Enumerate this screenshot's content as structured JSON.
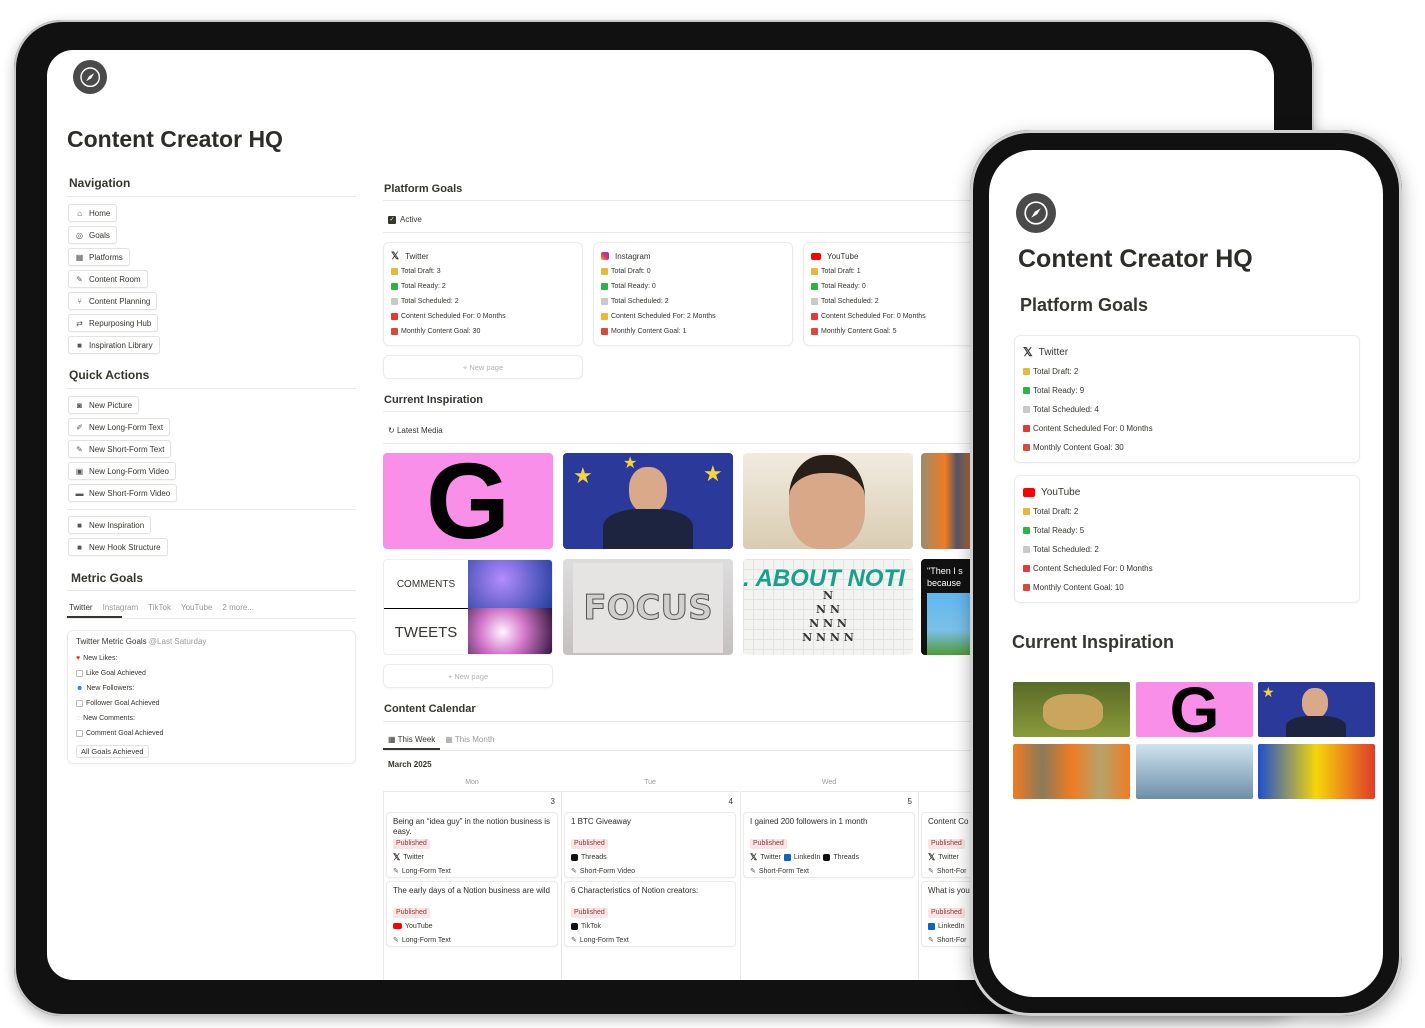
{
  "app": {
    "title": "Content Creator HQ",
    "logo": "compass-icon"
  },
  "navigation": {
    "heading": "Navigation",
    "items": [
      {
        "label": "Home",
        "icon": "home-icon"
      },
      {
        "label": "Goals",
        "icon": "target-icon"
      },
      {
        "label": "Platforms",
        "icon": "grid-icon"
      },
      {
        "label": "Content Room",
        "icon": "pencil-icon"
      },
      {
        "label": "Content Planning",
        "icon": "branch-icon"
      },
      {
        "label": "Repurposing Hub",
        "icon": "repeat-icon"
      },
      {
        "label": "Inspiration Library",
        "icon": "book-icon"
      }
    ]
  },
  "quick_actions": {
    "heading": "Quick Actions",
    "items": [
      {
        "label": "New Picture",
        "icon": "camera-icon"
      },
      {
        "label": "New Long-Form Text",
        "icon": "edit-icon"
      },
      {
        "label": "New Short-Form Text",
        "icon": "pencil-icon"
      },
      {
        "label": "New Long-Form Video",
        "icon": "film-icon"
      },
      {
        "label": "New Short-Form Video",
        "icon": "video-icon"
      }
    ],
    "extra": [
      {
        "label": "New Inspiration",
        "icon": "book-icon"
      },
      {
        "label": "New Hook Structure",
        "icon": "book-icon"
      }
    ]
  },
  "metric_goals": {
    "heading": "Metric Goals",
    "tabs": [
      "Twitter",
      "Instagram",
      "TikTok",
      "YouTube",
      "2 more..."
    ],
    "active_tab": "Twitter",
    "card": {
      "title": "Twitter Metric Goals",
      "date": "@Last Saturday",
      "rows": [
        {
          "type": "label",
          "text": "New Likes:",
          "icon": "heart-icon"
        },
        {
          "type": "check",
          "text": "Like Goal Achieved"
        },
        {
          "type": "label",
          "text": "New Followers:",
          "icon": "people-icon"
        },
        {
          "type": "check",
          "text": "Follower Goal Achieved"
        },
        {
          "type": "label",
          "text": "New Comments:",
          "icon": "comment-icon"
        },
        {
          "type": "check",
          "text": "Comment Goal Achieved"
        }
      ],
      "button": "All Goals Achieved"
    }
  },
  "platform_goals": {
    "heading": "Platform Goals",
    "filter": "Active",
    "new_page": "New page",
    "cards": [
      {
        "name": "Twitter",
        "draft": "Total Draft: 3",
        "ready": "Total Ready: 2",
        "scheduled": "Total Scheduled: 2",
        "scheduled_for": "Content Scheduled For: 0 Months",
        "goal": "Monthly Content Goal: 30",
        "alert": "siren"
      },
      {
        "name": "Instagram",
        "draft": "Total Draft: 0",
        "ready": "Total Ready: 0",
        "scheduled": "Total Scheduled: 2",
        "scheduled_for": "Content Scheduled For: 2 Months",
        "goal": "Monthly Content Goal: 1",
        "alert": "thumbs-up"
      },
      {
        "name": "YouTube",
        "draft": "Total Draft: 1",
        "ready": "Total Ready: 0",
        "scheduled": "Total Scheduled: 2",
        "scheduled_for": "Content Scheduled For: 0 Months",
        "goal": "Monthly Content Goal: 5",
        "alert": "siren"
      }
    ]
  },
  "inspiration": {
    "heading": "Current Inspiration",
    "view": "Latest Media",
    "new_page": "New page",
    "image_text": {
      "g": "G",
      "comments": "COMMENTS",
      "tweets": "TWEETS",
      "focus": "FOCUS",
      "about": ". ABOUT NOTI",
      "quote": "\"Then I s because"
    }
  },
  "calendar": {
    "heading": "Content Calendar",
    "tabs": [
      "This Week",
      "This Month"
    ],
    "month": "March 2025",
    "days": [
      {
        "name": "Mon",
        "num": "3"
      },
      {
        "name": "Tue",
        "num": "4"
      },
      {
        "name": "Wed",
        "num": "5"
      },
      {
        "name": "",
        "num": ""
      }
    ],
    "entries": [
      {
        "day": 0,
        "slot": 0,
        "title": "Being an “idea guy” in the notion business is easy.",
        "status": "Published",
        "platforms": [
          "Twitter"
        ],
        "format": "Long-Form Text"
      },
      {
        "day": 0,
        "slot": 1,
        "title": "The early days of a Notion business are wild",
        "status": "Published",
        "platforms": [
          "YouTube"
        ],
        "format": "Long-Form Text"
      },
      {
        "day": 1,
        "slot": 0,
        "title": "1 BTC Giveaway",
        "status": "Published",
        "platforms": [
          "Threads"
        ],
        "format": "Short-Form Video"
      },
      {
        "day": 1,
        "slot": 1,
        "title": "6 Characteristics of Notion creators:",
        "status": "Published",
        "platforms": [
          "TikTok"
        ],
        "format": "Long-Form Text"
      },
      {
        "day": 2,
        "slot": 0,
        "title": "I gained 200 followers in 1 month",
        "status": "Published",
        "platforms": [
          "Twitter",
          "LinkedIn",
          "Threads"
        ],
        "format": "Short-Form Text"
      },
      {
        "day": 3,
        "slot": 0,
        "title": "Content Co",
        "status": "Published",
        "platforms": [
          "Twitter"
        ],
        "format": "Short-For"
      },
      {
        "day": 3,
        "slot": 1,
        "title": "What is you",
        "status": "Published",
        "platforms": [
          "LinkedIn"
        ],
        "format": "Short-For"
      }
    ]
  },
  "phone": {
    "title": "Content Creator HQ",
    "platform_heading": "Platform Goals",
    "inspiration_heading": "Current Inspiration",
    "cards": [
      {
        "name": "Twitter",
        "draft": "Total Draft: 2",
        "ready": "Total Ready: 9",
        "scheduled": "Total Scheduled: 4",
        "scheduled_for": "Content Scheduled For: 0 Months",
        "goal": "Monthly Content Goal: 30"
      },
      {
        "name": "YouTube",
        "draft": "Total Draft: 2",
        "ready": "Total Ready: 5",
        "scheduled": "Total Scheduled: 2",
        "scheduled_for": "Content Scheduled For: 0 Months",
        "goal": "Monthly Content Goal: 10"
      }
    ],
    "image_text": {
      "g": "G"
    }
  },
  "colors": {
    "published_bg": "#fbe4e4",
    "published_text": "#8a3b3b",
    "youtube": "#ff0000",
    "linkedin": "#0a66c2",
    "check": "#2fb344",
    "pink": "#f98fe8",
    "eu_blue": "#2b3a9a"
  }
}
